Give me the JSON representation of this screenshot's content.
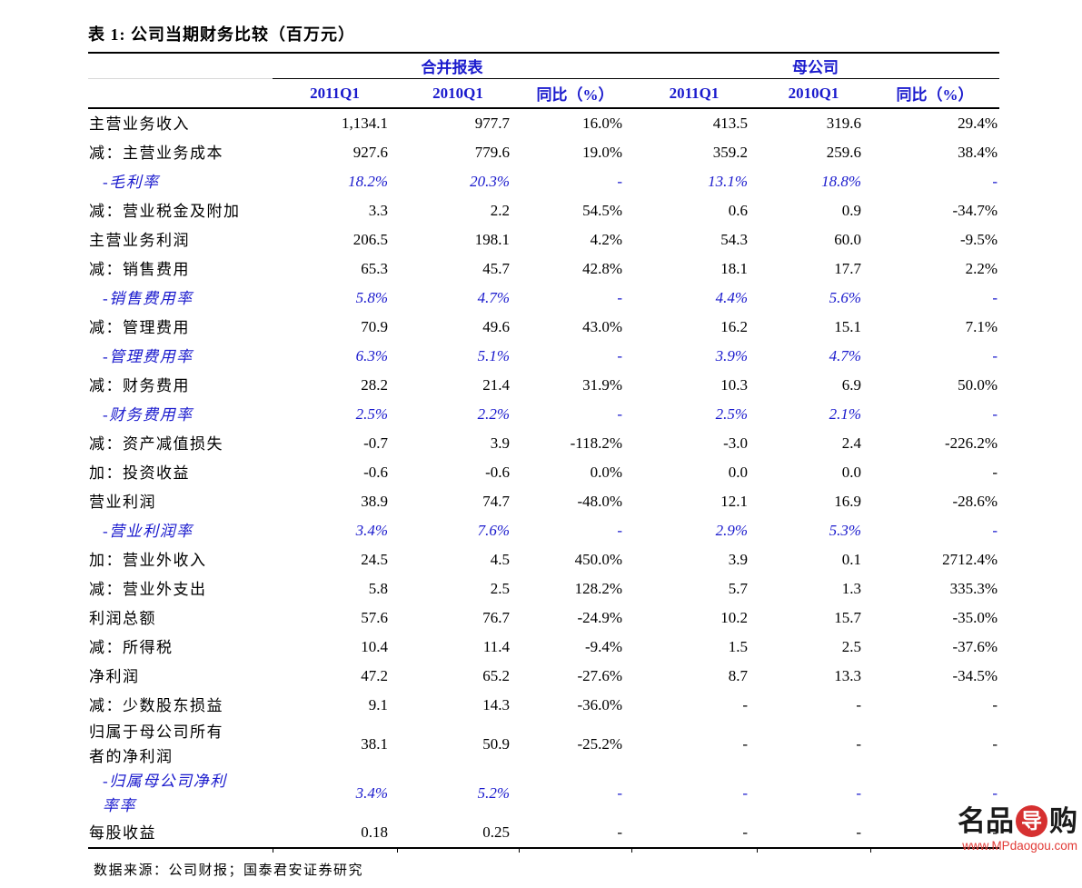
{
  "title": "表 1: 公司当期财务比较（百万元）",
  "table": {
    "groups": [
      {
        "label": "合并报表"
      },
      {
        "label": "母公司"
      }
    ],
    "columns": [
      "2011Q1",
      "2010Q1",
      "同比（%）",
      "2011Q1",
      "2010Q1",
      "同比（%）"
    ],
    "rows": [
      {
        "label": "主营业务收入",
        "type": "item",
        "values": [
          "1,134.1",
          "977.7",
          "16.0%",
          "413.5",
          "319.6",
          "29.4%"
        ]
      },
      {
        "label": "减：主营业务成本",
        "type": "item",
        "values": [
          "927.6",
          "779.6",
          "19.0%",
          "359.2",
          "259.6",
          "38.4%"
        ]
      },
      {
        "label": "-毛利率",
        "type": "ratio",
        "values": [
          "18.2%",
          "20.3%",
          "-",
          "13.1%",
          "18.8%",
          "-"
        ]
      },
      {
        "label": "减：营业税金及附加",
        "type": "item",
        "values": [
          "3.3",
          "2.2",
          "54.5%",
          "0.6",
          "0.9",
          "-34.7%"
        ]
      },
      {
        "label": "主营业务利润",
        "type": "item",
        "values": [
          "206.5",
          "198.1",
          "4.2%",
          "54.3",
          "60.0",
          "-9.5%"
        ]
      },
      {
        "label": "减：销售费用",
        "type": "item",
        "values": [
          "65.3",
          "45.7",
          "42.8%",
          "18.1",
          "17.7",
          "2.2%"
        ]
      },
      {
        "label": "-销售费用率",
        "type": "ratio",
        "values": [
          "5.8%",
          "4.7%",
          "-",
          "4.4%",
          "5.6%",
          "-"
        ]
      },
      {
        "label": "减：管理费用",
        "type": "item",
        "values": [
          "70.9",
          "49.6",
          "43.0%",
          "16.2",
          "15.1",
          "7.1%"
        ]
      },
      {
        "label": "-管理费用率",
        "type": "ratio",
        "values": [
          "6.3%",
          "5.1%",
          "-",
          "3.9%",
          "4.7%",
          "-"
        ]
      },
      {
        "label": "减：财务费用",
        "type": "item",
        "values": [
          "28.2",
          "21.4",
          "31.9%",
          "10.3",
          "6.9",
          "50.0%"
        ]
      },
      {
        "label": "-财务费用率",
        "type": "ratio",
        "values": [
          "2.5%",
          "2.2%",
          "-",
          "2.5%",
          "2.1%",
          "-"
        ]
      },
      {
        "label": "减：资产减值损失",
        "type": "item",
        "values": [
          "-0.7",
          "3.9",
          "-118.2%",
          "-3.0",
          "2.4",
          "-226.2%"
        ]
      },
      {
        "label": "加：投资收益",
        "type": "item",
        "values": [
          "-0.6",
          "-0.6",
          "0.0%",
          "0.0",
          "0.0",
          "-"
        ]
      },
      {
        "label": "营业利润",
        "type": "item",
        "values": [
          "38.9",
          "74.7",
          "-48.0%",
          "12.1",
          "16.9",
          "-28.6%"
        ]
      },
      {
        "label": "-营业利润率",
        "type": "ratio",
        "values": [
          "3.4%",
          "7.6%",
          "-",
          "2.9%",
          "5.3%",
          "-"
        ]
      },
      {
        "label": "加：营业外收入",
        "type": "item",
        "values": [
          "24.5",
          "4.5",
          "450.0%",
          "3.9",
          "0.1",
          "2712.4%"
        ]
      },
      {
        "label": "减：营业外支出",
        "type": "item",
        "values": [
          "5.8",
          "2.5",
          "128.2%",
          "5.7",
          "1.3",
          "335.3%"
        ]
      },
      {
        "label": "利润总额",
        "type": "item",
        "values": [
          "57.6",
          "76.7",
          "-24.9%",
          "10.2",
          "15.7",
          "-35.0%"
        ]
      },
      {
        "label": "减：所得税",
        "type": "item",
        "values": [
          "10.4",
          "11.4",
          "-9.4%",
          "1.5",
          "2.5",
          "-37.6%"
        ]
      },
      {
        "label": "净利润",
        "type": "item",
        "values": [
          "47.2",
          "65.2",
          "-27.6%",
          "8.7",
          "13.3",
          "-34.5%"
        ]
      },
      {
        "label": "减：少数股东损益",
        "type": "item",
        "values": [
          "9.1",
          "14.3",
          "-36.0%",
          "-",
          "-",
          "-"
        ]
      },
      {
        "label": "归属于母公司所有\n者的净利润",
        "type": "item",
        "values": [
          "38.1",
          "50.9",
          "-25.2%",
          "-",
          "-",
          "-"
        ]
      },
      {
        "label": "-归属母公司净利\n率率",
        "type": "ratio",
        "values": [
          "3.4%",
          "5.2%",
          "-",
          "-",
          "-",
          "-"
        ]
      },
      {
        "label": "每股收益",
        "type": "item",
        "values": [
          "0.18",
          "0.25",
          "-",
          "-",
          "-",
          "-"
        ]
      }
    ]
  },
  "footer": {
    "source": "数据来源：公司财报；国泰君安证券研究"
  },
  "watermark": {
    "logo_prefix": "名品",
    "logo_circle": "导",
    "logo_suffix": "购",
    "url": "www.MPdaogou.com"
  },
  "colors": {
    "accent_blue": "#1a1acd",
    "watermark_red": "#d63030"
  }
}
